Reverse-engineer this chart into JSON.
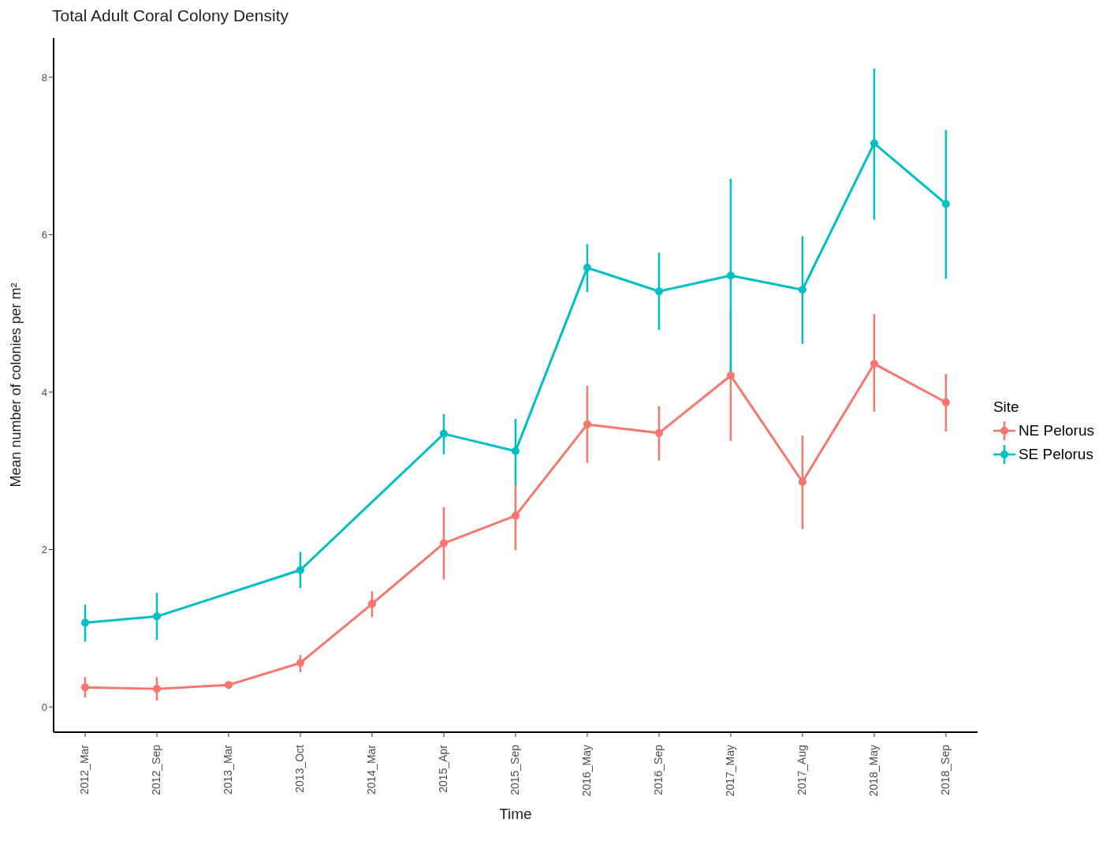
{
  "chart_data": {
    "type": "line",
    "title": "Total Adult Coral Colony Density",
    "xlabel": "Time",
    "ylabel": "Mean number of colonies per m²",
    "legend_title": "Site",
    "legend": "right",
    "marker": "circle",
    "grid": false,
    "categories": [
      "2012_Mar",
      "2012_Sep",
      "2013_Mar",
      "2013_Oct",
      "2014_Mar",
      "2015_Apr",
      "2015_Sep",
      "2016_May",
      "2016_Sep",
      "2017_May",
      "2017_Aug",
      "2018_May",
      "2018_Sep"
    ],
    "ylim": [
      -0.32,
      8.5
    ],
    "yticks": [
      0,
      2,
      4,
      6,
      8
    ],
    "series": [
      {
        "name": "NE Pelorus",
        "color": "#f8766d",
        "values": [
          0.25,
          0.23,
          0.28,
          0.56,
          1.31,
          2.08,
          2.43,
          3.59,
          3.48,
          4.21,
          2.86,
          4.36,
          3.87
        ],
        "errors": [
          [
            0.12,
            0.38
          ],
          [
            0.08,
            0.38
          ],
          [
            0.25,
            0.31
          ],
          [
            0.44,
            0.66
          ],
          [
            1.14,
            1.47
          ],
          [
            1.62,
            2.54
          ],
          [
            1.99,
            2.86
          ],
          [
            3.1,
            4.08
          ],
          [
            3.13,
            3.82
          ],
          [
            3.38,
            5.02
          ],
          [
            2.26,
            3.45
          ],
          [
            3.75,
            4.99
          ],
          [
            3.5,
            4.23
          ]
        ]
      },
      {
        "name": "SE Pelorus",
        "color": "#00bfc4",
        "values": [
          1.07,
          1.15,
          null,
          1.74,
          null,
          3.47,
          3.25,
          5.58,
          5.28,
          5.48,
          5.3,
          7.16,
          6.39
        ],
        "errors": [
          [
            0.83,
            1.3
          ],
          [
            0.85,
            1.45
          ],
          null,
          [
            1.51,
            1.97
          ],
          null,
          [
            3.21,
            3.72
          ],
          [
            2.82,
            3.66
          ],
          [
            5.27,
            5.88
          ],
          [
            4.79,
            5.77
          ],
          [
            4.23,
            6.71
          ],
          [
            4.61,
            5.98
          ],
          [
            6.19,
            8.11
          ],
          [
            5.44,
            7.33
          ]
        ]
      }
    ]
  }
}
